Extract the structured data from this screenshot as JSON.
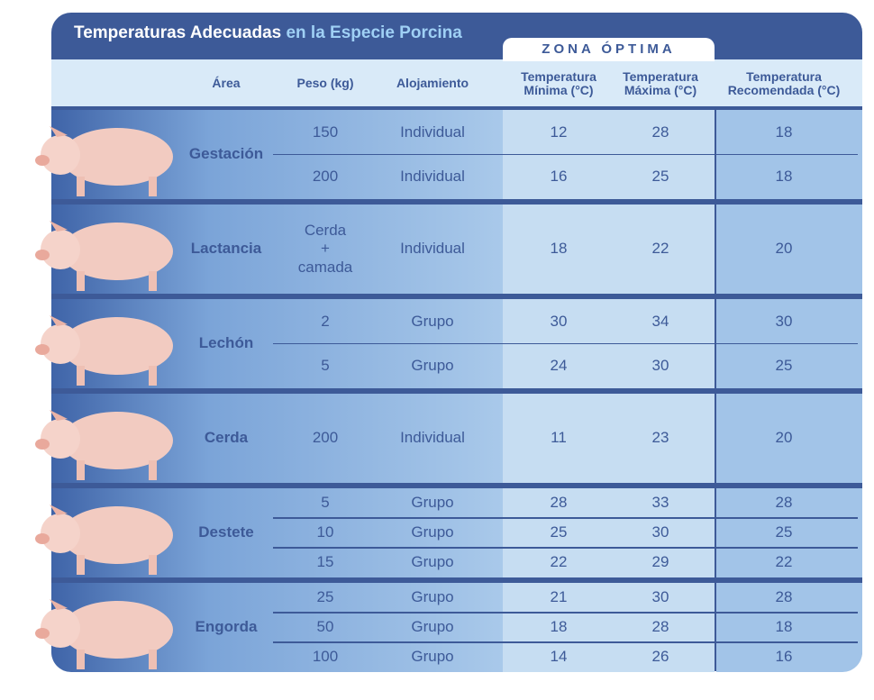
{
  "header": {
    "title": "Temperaturas Adecuadas",
    "title_highlight": "en la Especie Porcina",
    "zone_label": "ZONA ÓPTIMA"
  },
  "table": {
    "columns": [
      "Área",
      "Peso (kg)",
      "Alojamiento",
      "Temperatura\nMínima (°C)",
      "Temperatura\nMáxima (°C)",
      "Temperatura\nRecomendada (°C)"
    ],
    "groups": [
      {
        "area": "Gestación",
        "rows": [
          [
            150,
            "Individual",
            12,
            28,
            18
          ],
          [
            200,
            "Individual",
            16,
            25,
            18
          ]
        ]
      },
      {
        "area": "Lactancia",
        "rows": [
          [
            "Cerda\n+\ncamada",
            "Individual",
            18,
            22,
            20
          ]
        ]
      },
      {
        "area": "Lechón",
        "rows": [
          [
            2,
            "Grupo",
            30,
            34,
            30
          ],
          [
            5,
            "Grupo",
            24,
            30,
            25
          ]
        ]
      },
      {
        "area": "Cerda",
        "rows": [
          [
            200,
            "Individual",
            11,
            23,
            20
          ]
        ]
      },
      {
        "area": "Destete",
        "rows": [
          [
            5,
            "Grupo",
            28,
            33,
            28
          ],
          [
            10,
            "Grupo",
            25,
            30,
            25
          ],
          [
            15,
            "Grupo",
            22,
            29,
            22
          ]
        ]
      },
      {
        "area": "Engorda",
        "rows": [
          [
            25,
            "Grupo",
            21,
            30,
            28
          ],
          [
            50,
            "Grupo",
            18,
            28,
            18
          ],
          [
            100,
            "Grupo",
            14,
            26,
            16
          ]
        ]
      }
    ]
  }
}
